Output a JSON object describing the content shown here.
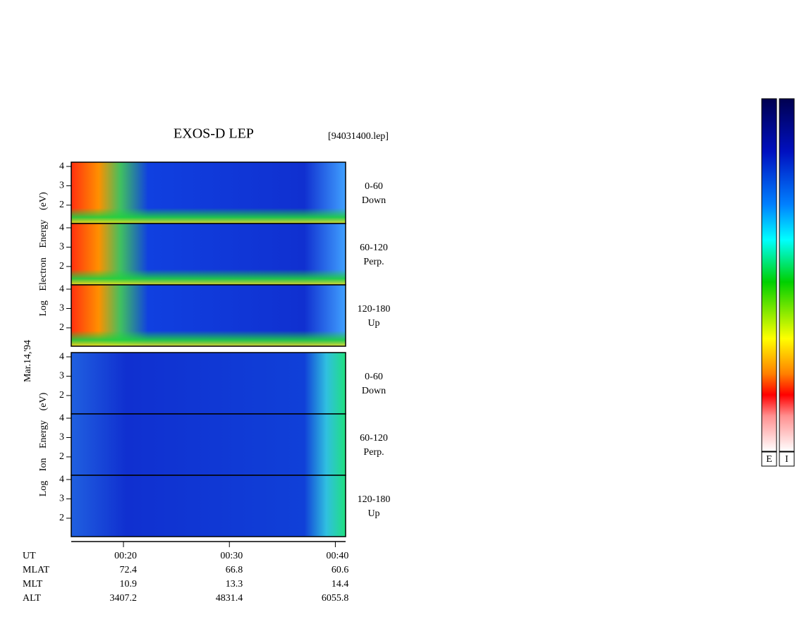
{
  "chart_data": {
    "type": "spectrogram",
    "title": "EXOS-D LEP",
    "file": "[94031400.lep]",
    "date": "Mar.14,'94",
    "ylim": [
      1.05,
      4.22
    ],
    "yticks": [
      2,
      3,
      4
    ],
    "xlim": [
      15.07,
      40.97
    ],
    "xticks": [
      {
        "value": 20,
        "label": "00:20"
      },
      {
        "value": 30,
        "label": "00:30"
      },
      {
        "value": 40,
        "label": "00:40"
      }
    ],
    "x_label": "UT",
    "groups": [
      {
        "name": "electron",
        "axis_label": "Log Electron Energy (eV)",
        "panels": [
          {
            "angle": "0-60",
            "direction": "Down"
          },
          {
            "angle": "60-120",
            "direction": "Perp."
          },
          {
            "angle": "120-180",
            "direction": "Up"
          }
        ]
      },
      {
        "name": "ion",
        "axis_label": "Log Ion Energy (eV)",
        "panels": [
          {
            "angle": "0-60",
            "direction": "Down"
          },
          {
            "angle": "60-120",
            "direction": "Perp."
          },
          {
            "angle": "120-180",
            "direction": "Up"
          }
        ]
      }
    ],
    "ephemeris": [
      {
        "name": "MLAT",
        "values": [
          72.4,
          66.8,
          60.6
        ]
      },
      {
        "name": "MLT",
        "values": [
          10.9,
          13.3,
          14.4
        ]
      },
      {
        "name": "ALT",
        "values": [
          3407.2,
          4831.4,
          6055.8
        ]
      }
    ],
    "colorbars": [
      "E",
      "I"
    ]
  }
}
